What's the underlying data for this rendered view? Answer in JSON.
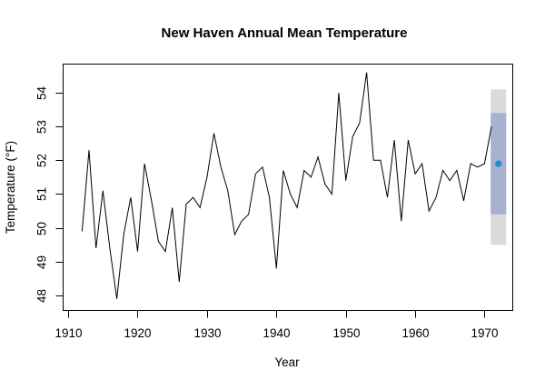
{
  "chart_data": {
    "type": "line",
    "title": "New Haven Annual Mean Temperature",
    "xlabel": "Year",
    "ylabel": "Temperature (°F)",
    "grid": false,
    "legend_position": "none",
    "xlim": [
      1909.2,
      1974.0
    ],
    "ylim": [
      47.57,
      54.86
    ],
    "x_ticks": [
      1910,
      1920,
      1930,
      1940,
      1950,
      1960,
      1970
    ],
    "y_ticks": [
      48,
      49,
      50,
      51,
      52,
      53,
      54
    ],
    "series": [
      {
        "name": "annual-mean-temperature",
        "color": "#000000",
        "x_start": 1912,
        "x_end": 1971,
        "x_step": 1,
        "values": [
          49.9,
          52.3,
          49.4,
          51.1,
          49.4,
          47.9,
          49.8,
          50.9,
          49.3,
          51.9,
          50.8,
          49.6,
          49.3,
          50.6,
          48.4,
          50.7,
          50.9,
          50.6,
          51.5,
          52.8,
          51.8,
          51.1,
          49.8,
          50.2,
          50.4,
          51.6,
          51.8,
          50.9,
          48.8,
          51.7,
          51.0,
          50.6,
          51.7,
          51.5,
          52.1,
          51.3,
          51.0,
          54.0,
          51.4,
          52.7,
          53.1,
          54.6,
          52.0,
          52.0,
          50.9,
          52.6,
          50.2,
          52.6,
          51.6,
          51.9,
          50.5,
          50.9,
          51.7,
          51.4,
          51.7,
          50.8,
          51.9,
          51.8,
          51.9,
          53.0
        ]
      }
    ],
    "forecast": {
      "year": 1972,
      "point": 51.9,
      "point_color": "#1B8FD6",
      "interval_80": [
        50.4,
        53.4
      ],
      "interval_80_color": "#A9B1D1",
      "interval_95": [
        49.5,
        54.1
      ],
      "interval_95_color": "#DBDBDB"
    },
    "axis_color": "#000000",
    "background_color": "#ffffff"
  }
}
